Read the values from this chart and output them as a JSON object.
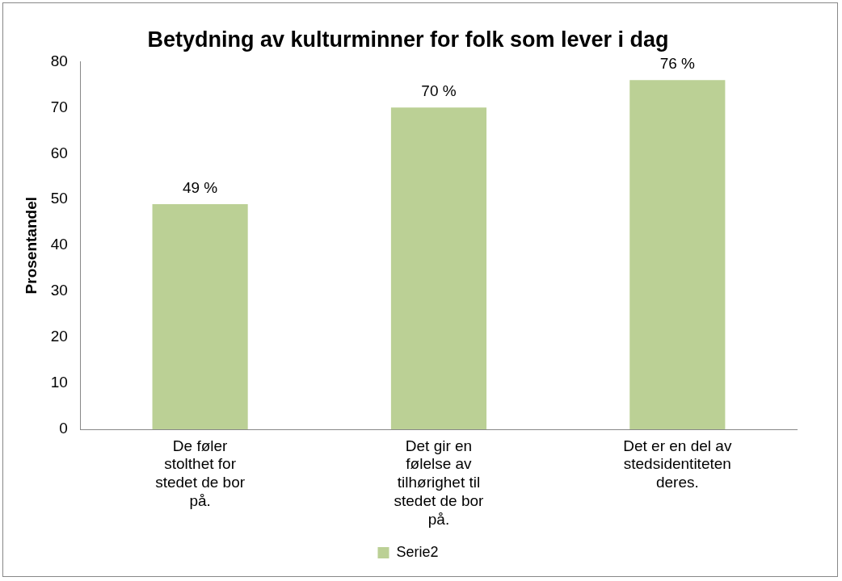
{
  "chart_data": {
    "type": "bar",
    "title": "Betydning av kulturminner for folk som lever i dag",
    "ylabel": "Prosentandel",
    "categories": [
      "De føler stolthet for stedet de bor på.",
      "Det gir en følelse av tilhørighet til stedet de bor på.",
      "Det er en del av stedsidentiteten deres."
    ],
    "series": [
      {
        "name": "Serie2",
        "color": "#bbd095",
        "values": [
          49,
          70,
          76
        ],
        "value_labels": [
          "49 %",
          "70 %",
          "76 %"
        ]
      }
    ],
    "ylim": [
      0,
      80
    ],
    "yticks": [
      0,
      10,
      20,
      30,
      40,
      50,
      60,
      70,
      80
    ],
    "grid": false,
    "legend": "bottom"
  }
}
